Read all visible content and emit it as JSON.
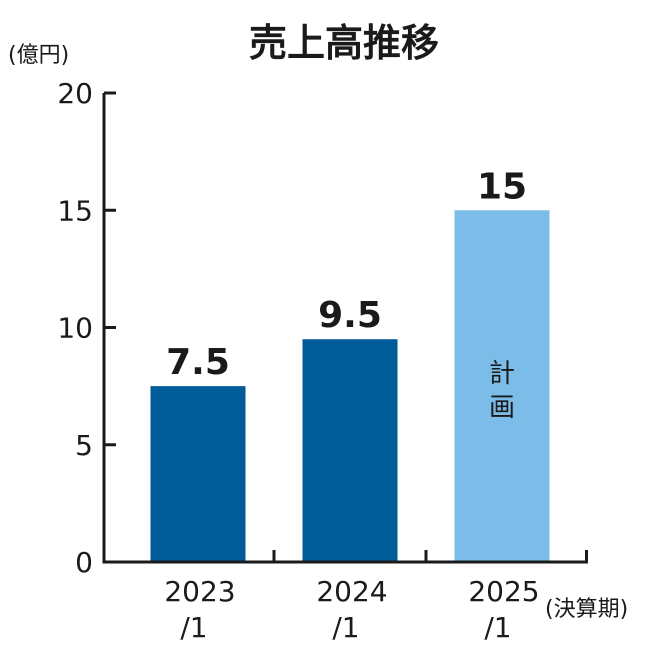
{
  "chart_data": {
    "type": "bar",
    "title": "売上高推移",
    "ylabel": "(億円)",
    "xlabel": "(決算期)",
    "ylim": [
      0,
      20
    ],
    "yticks": [
      "0",
      "5",
      "10",
      "15",
      "20"
    ],
    "categories": [
      {
        "line1": "2023",
        "line2": "/1"
      },
      {
        "line1": "2024",
        "line2": "/1"
      },
      {
        "line1": "2025",
        "line2": "/1"
      }
    ],
    "values": [
      7.5,
      9.5,
      15
    ],
    "value_labels": [
      "7.5",
      "9.5",
      "15"
    ],
    "bar_notes": [
      "",
      "",
      "計画"
    ],
    "colors": [
      "#005b99",
      "#005b99",
      "#7bbde8"
    ],
    "axis_color": "#1a1a1a",
    "grid": false
  }
}
